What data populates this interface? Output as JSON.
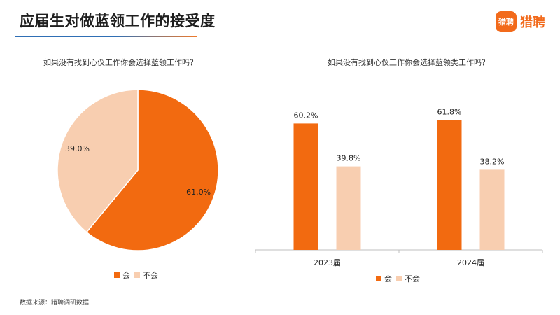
{
  "header": {
    "title": "应届生对做蓝领工作的接受度",
    "logo_badge": "猎聘",
    "logo_text": "猎聘"
  },
  "colors": {
    "yes": "#f26a10",
    "no": "#f8ceb0",
    "accent": "#f26a1b"
  },
  "chart_data": [
    {
      "type": "pie",
      "title": "如果没有找到心仪工作你会选择蓝领工作吗？",
      "slices": [
        {
          "label": "会",
          "value": 61.0,
          "display": "61.0%"
        },
        {
          "label": "不会",
          "value": 39.0,
          "display": "39.0%"
        }
      ],
      "legend": [
        "会",
        "不会"
      ],
      "legend_position": "bottom"
    },
    {
      "type": "bar",
      "title": "如果没有找到心仪工作你会选择蓝领类工作吗？",
      "categories": [
        "2023届",
        "2024届"
      ],
      "series": [
        {
          "name": "会",
          "values": [
            60.2,
            61.8
          ],
          "display": [
            "60.2%",
            "61.8%"
          ]
        },
        {
          "name": "不会",
          "values": [
            39.8,
            38.2
          ],
          "display": [
            "39.8%",
            "38.2%"
          ]
        }
      ],
      "ylim": [
        0,
        100
      ],
      "grid": false,
      "legend_position": "bottom"
    }
  ],
  "footer": {
    "source": "数据来源：猎聘调研数据"
  }
}
